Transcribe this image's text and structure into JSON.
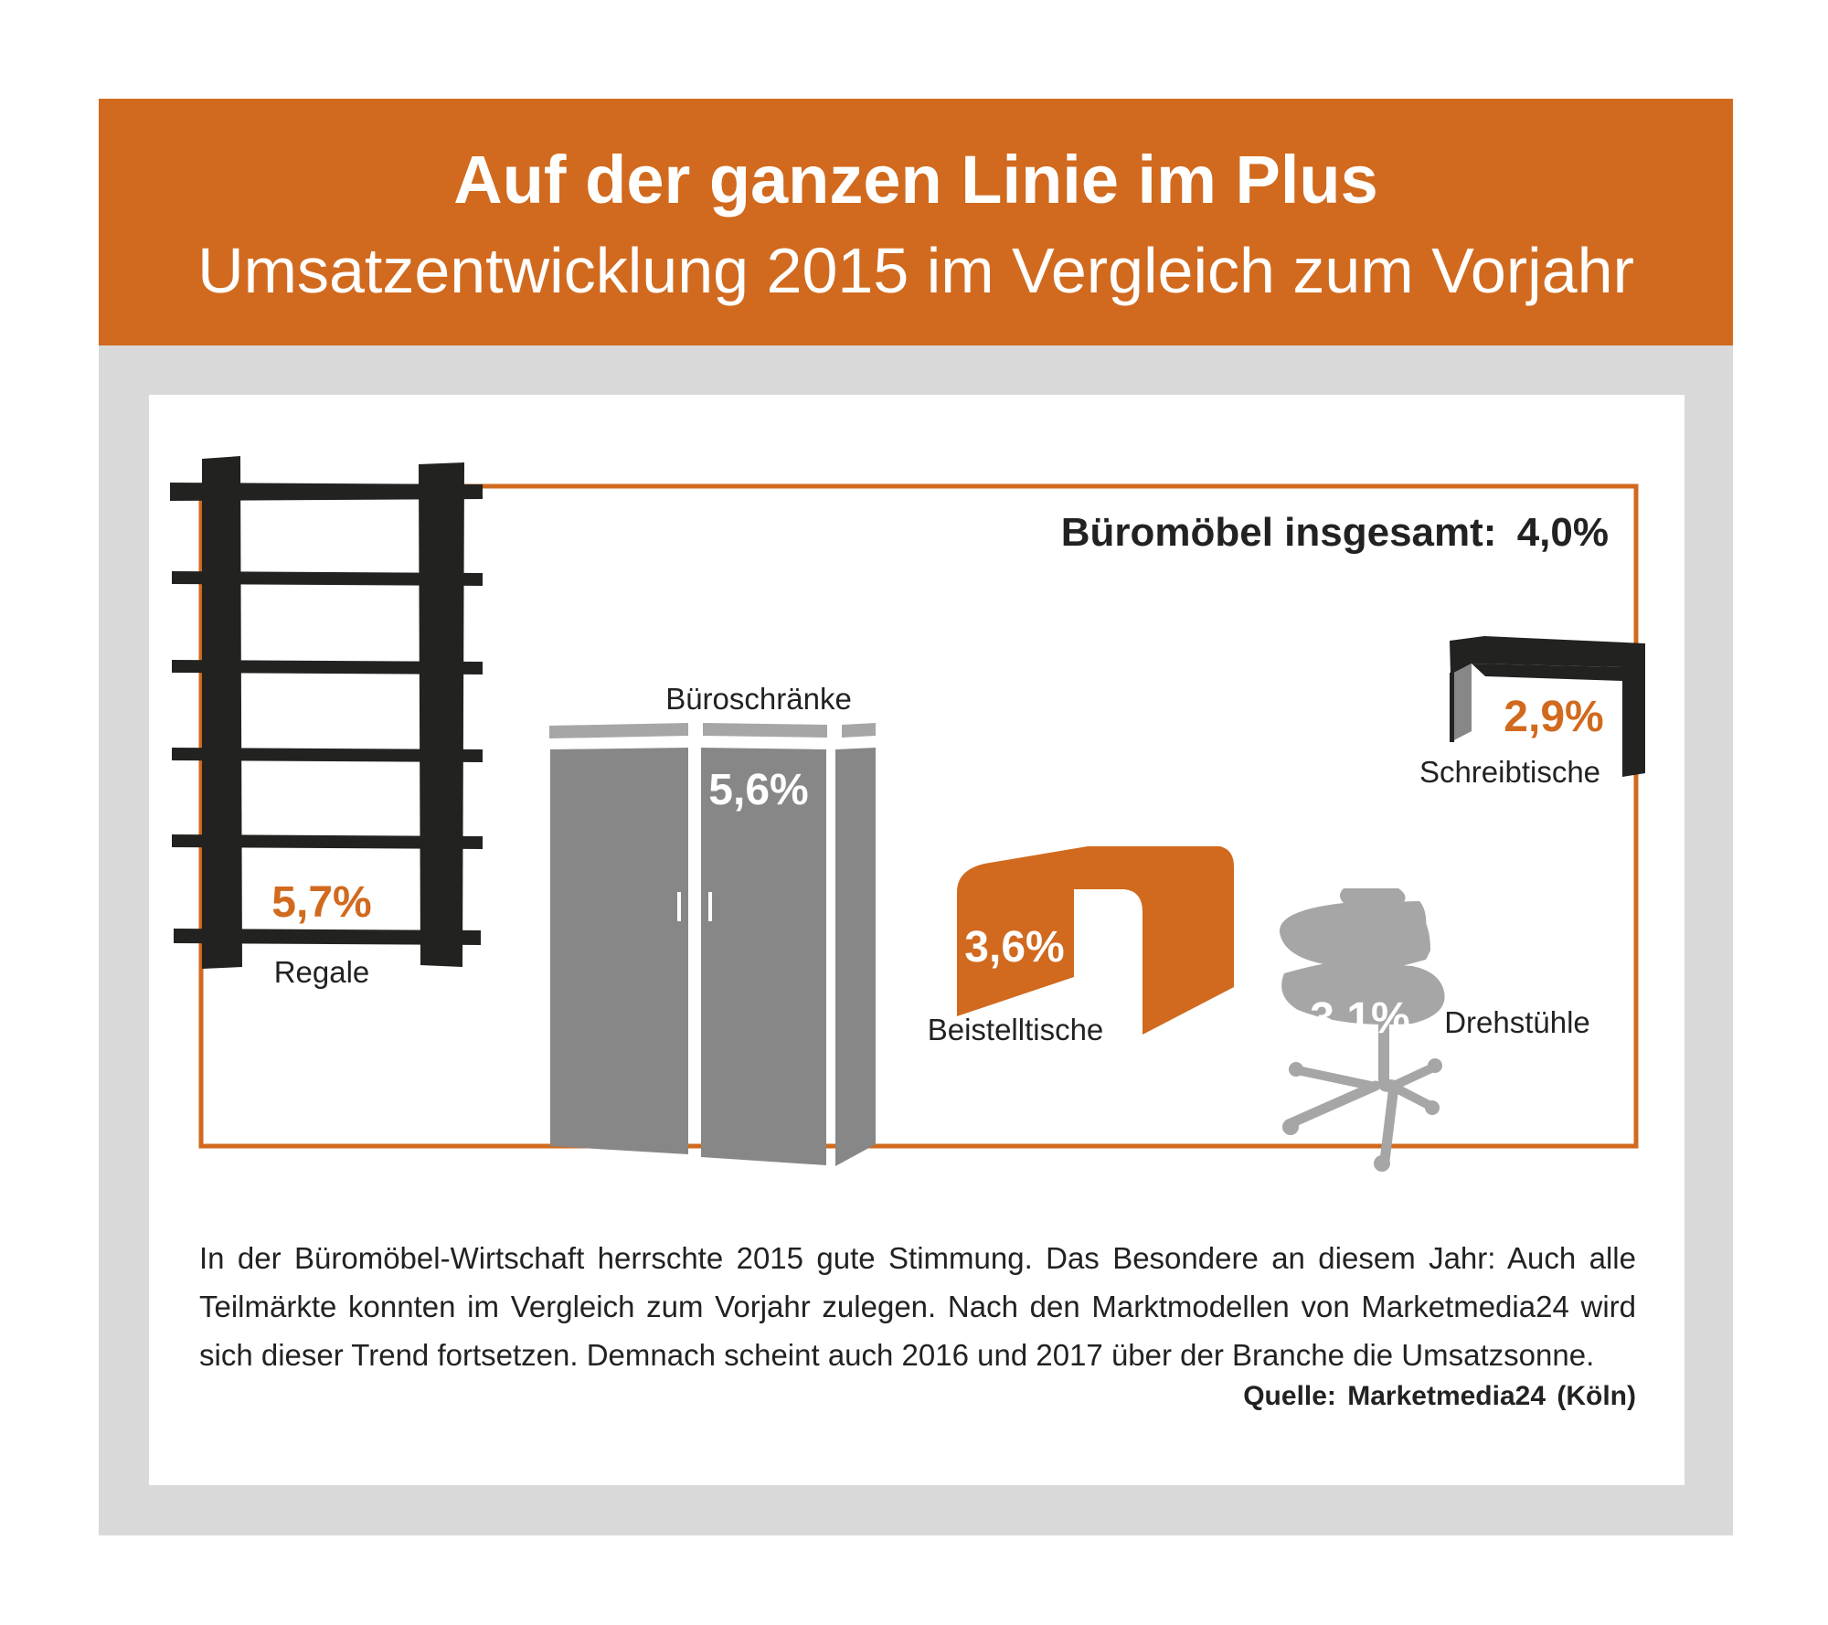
{
  "header": {
    "title": "Auf der ganzen Linie im Plus",
    "subtitle": "Umsatzentwicklung 2015 im Vergleich zum Vorjahr"
  },
  "chart_data": {
    "type": "infographic",
    "unit": "%",
    "total": {
      "label": "Büromöbel insgesamt:",
      "value_label": "4,0%",
      "value": 4.0
    },
    "categories": [
      "Regale",
      "Büroschränke",
      "Beistelltische",
      "Drehstühle",
      "Schreibtische"
    ],
    "values": [
      5.7,
      5.6,
      3.6,
      3.1,
      2.9
    ],
    "value_labels": [
      "5,7%",
      "5,6%",
      "3,6%",
      "3,1%",
      "2,9%"
    ],
    "icons": [
      "shelf-icon",
      "cabinet-icon",
      "side-table-icon",
      "swivel-chair-icon",
      "desk-icon"
    ]
  },
  "description": "In der Büromöbel-Wirtschaft herrschte 2015 gute Stimmung. Das Besondere an diesem Jahr: Auch alle Teilmärkte konnten im Vergleich zum Vorjahr zulegen. Nach den Marktmodellen von Marketmedia24 wird sich dieser Trend fortsetzen. Demnach scheint auch 2016 und 2017 über der Branche die Umsatzsonne.",
  "source": "Quelle: Marketmedia24 (Köln)",
  "colors": {
    "accent": "#d16a1e",
    "dark": "#222220",
    "gray": "#878787",
    "light_gray": "#a6a6a6",
    "frame": "#d9d9d9"
  }
}
